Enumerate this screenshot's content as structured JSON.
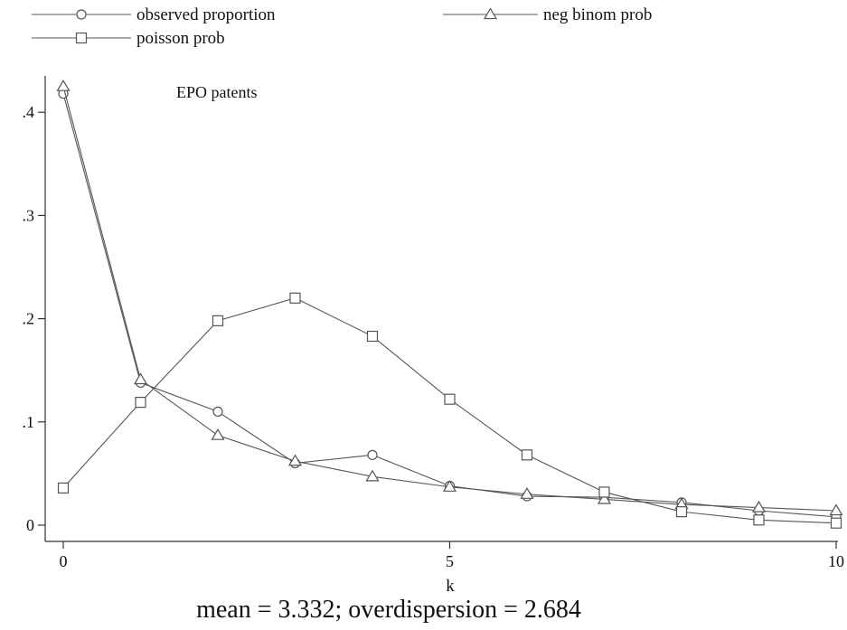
{
  "chart_data": {
    "type": "line",
    "annotation": "EPO patents",
    "caption": "mean = 3.332; overdispersion = 2.684",
    "xlabel": "k",
    "ylabel": "",
    "xlim": [
      0,
      10
    ],
    "ylim": [
      0,
      0.43
    ],
    "x_ticks": [
      0,
      5,
      10
    ],
    "x_tick_labels": [
      "0",
      "5",
      "10"
    ],
    "y_ticks": [
      0,
      0.1,
      0.2,
      0.3,
      0.4
    ],
    "y_tick_labels": [
      "0",
      ".1",
      ".2",
      ".3",
      ".4"
    ],
    "grid": false,
    "legend_position": "top",
    "x": [
      0,
      1,
      2,
      3,
      4,
      5,
      6,
      7,
      8,
      9,
      10
    ],
    "series": [
      {
        "name": "observed proportion",
        "marker": "circle",
        "color": "#555555",
        "values": [
          0.418,
          0.138,
          0.11,
          0.06,
          0.068,
          0.038,
          0.028,
          0.027,
          0.022,
          0.014,
          0.008
        ]
      },
      {
        "name": "neg binom prob",
        "marker": "triangle",
        "color": "#555555",
        "values": [
          0.425,
          0.141,
          0.087,
          0.062,
          0.047,
          0.037,
          0.03,
          0.025,
          0.02,
          0.017,
          0.014
        ]
      },
      {
        "name": "poisson prob",
        "marker": "square",
        "color": "#555555",
        "values": [
          0.036,
          0.119,
          0.198,
          0.22,
          0.183,
          0.122,
          0.068,
          0.032,
          0.013,
          0.005,
          0.002
        ]
      }
    ]
  }
}
